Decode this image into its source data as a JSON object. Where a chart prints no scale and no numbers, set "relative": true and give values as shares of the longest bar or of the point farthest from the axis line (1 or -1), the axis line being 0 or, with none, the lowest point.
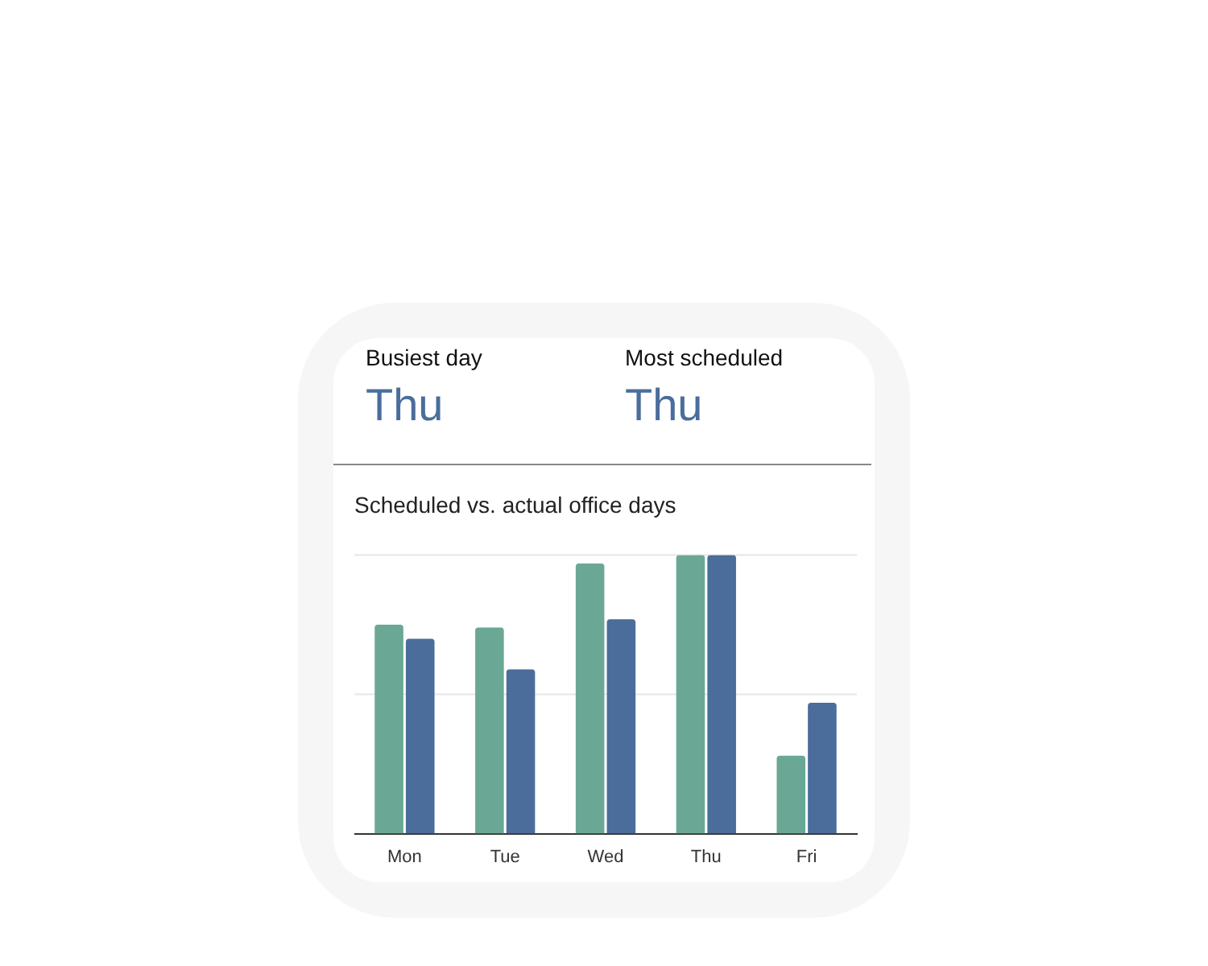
{
  "chart_data": [
    {
      "type": "other",
      "annotations": [
        "Busiest day",
        "Thu",
        "Most scheduled",
        "Thu"
      ]
    },
    {
      "type": "bar",
      "title": "Scheduled vs. actual office days",
      "categories": [
        "Mon",
        "Tue",
        "Wed",
        "Thu",
        "Fri"
      ],
      "relative": true,
      "legend": false,
      "ref_lines": [
        {
          "axis": "y",
          "value": 0.5,
          "color": "#e6e6e6"
        },
        {
          "axis": "y",
          "value": 1,
          "color": "#e6e6e6"
        }
      ],
      "series": [
        {
          "color": "#6aa895",
          "values": [
            0.75,
            0.74,
            0.97,
            1,
            0.28
          ]
        },
        {
          "color": "#4a6d9b",
          "values": [
            0.7,
            0.59,
            0.77,
            1,
            0.47
          ]
        }
      ]
    }
  ]
}
